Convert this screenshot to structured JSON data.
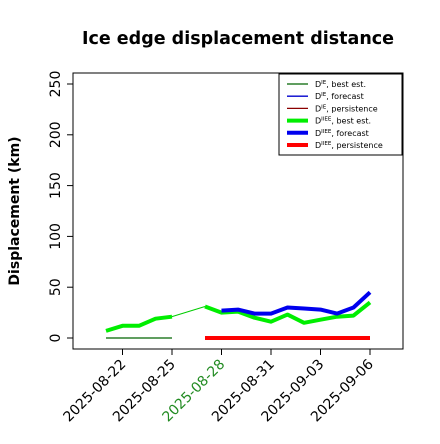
{
  "chart_data": {
    "type": "line",
    "title": "Ice edge displacement distance",
    "xlabel": "",
    "ylabel": "Displacement (km)",
    "ylim": [
      0,
      260
    ],
    "y_ticks": [
      0,
      50,
      100,
      150,
      200,
      250
    ],
    "x_ticks": [
      "2025-08-22",
      "2025-08-25",
      "2025-08-28",
      "2025-08-31",
      "2025-09-03",
      "2025-09-06"
    ],
    "x_tick_colors": [
      "#000000",
      "#000000",
      "#228B22",
      "#000000",
      "#000000",
      "#000000"
    ],
    "x_start": "2025-08-19",
    "x_end": "2025-09-08",
    "legend_position": "top-right",
    "legend": [
      {
        "sym": "D",
        "sup": "IE",
        "text": ", best est.",
        "color": "#006400",
        "width": "thin"
      },
      {
        "sym": "D",
        "sup": "IE",
        "text": ", forecast",
        "color": "#0000cd",
        "width": "thin"
      },
      {
        "sym": "D",
        "sup": "IE",
        "text": ", persistence",
        "color": "#8b0000",
        "width": "thin"
      },
      {
        "sym": "D",
        "sup": "IIEE",
        "text": ", best est.",
        "color": "#00ee00",
        "width": "thick"
      },
      {
        "sym": "D",
        "sup": "IIEE",
        "text": ", forecast",
        "color": "#0000ee",
        "width": "thick"
      },
      {
        "sym": "D",
        "sup": "IIEE",
        "text": ", persistence",
        "color": "#ff0000",
        "width": "thick"
      }
    ],
    "series": [
      {
        "key": "ie_best",
        "color": "#006400",
        "width": 1.2,
        "x": [
          "2025-08-21",
          "2025-08-22",
          "2025-08-23",
          "2025-08-24",
          "2025-08-25"
        ],
        "values": [
          0,
          0,
          0,
          0,
          0
        ]
      },
      {
        "key": "ie_persist",
        "color": "#8b0000",
        "width": 1.2,
        "x": [
          "2025-08-27",
          "2025-08-28",
          "2025-08-29",
          "2025-08-30",
          "2025-08-31",
          "2025-09-01",
          "2025-09-02",
          "2025-09-03",
          "2025-09-04",
          "2025-09-05",
          "2025-09-06"
        ],
        "values": [
          0,
          0,
          0,
          0,
          0,
          0,
          0,
          0,
          0,
          0,
          0
        ]
      },
      {
        "key": "iiee_best",
        "color": "#00ee00",
        "width": 4,
        "x": [
          "2025-08-21",
          "2025-08-22",
          "2025-08-23",
          "2025-08-24",
          "2025-08-25"
        ],
        "values": [
          7,
          12,
          12,
          19,
          21
        ]
      },
      {
        "key": "iiee_best_cont",
        "color": "#00ee00",
        "width": 4,
        "x": [
          "2025-08-27",
          "2025-08-28",
          "2025-08-29",
          "2025-08-30",
          "2025-08-31",
          "2025-09-01",
          "2025-09-02",
          "2025-09-03",
          "2025-09-04",
          "2025-09-05",
          "2025-09-06"
        ],
        "values": [
          31,
          25,
          26,
          20,
          16,
          23,
          15,
          18,
          21,
          22,
          35
        ]
      },
      {
        "key": "iiee_forecast",
        "color": "#0000ee",
        "width": 4,
        "x": [
          "2025-08-28",
          "2025-08-29",
          "2025-08-30",
          "2025-08-31",
          "2025-09-01",
          "2025-09-02",
          "2025-09-03",
          "2025-09-04",
          "2025-09-05",
          "2025-09-06"
        ],
        "values": [
          27,
          28,
          24,
          24,
          30,
          29,
          28,
          24,
          30,
          45
        ]
      },
      {
        "key": "iiee_persist",
        "color": "#ff0000",
        "width": 4,
        "x": [
          "2025-08-27",
          "2025-08-28",
          "2025-08-29",
          "2025-08-30",
          "2025-08-31",
          "2025-09-01",
          "2025-09-02",
          "2025-09-03",
          "2025-09-04",
          "2025-09-05",
          "2025-09-06"
        ],
        "values": [
          0,
          0,
          0,
          0,
          0,
          0,
          0,
          0,
          0,
          0,
          0
        ]
      }
    ],
    "connector": {
      "color": "#00cc00",
      "x": [
        "2025-08-25",
        "2025-08-27"
      ],
      "values": [
        21,
        31
      ]
    }
  }
}
